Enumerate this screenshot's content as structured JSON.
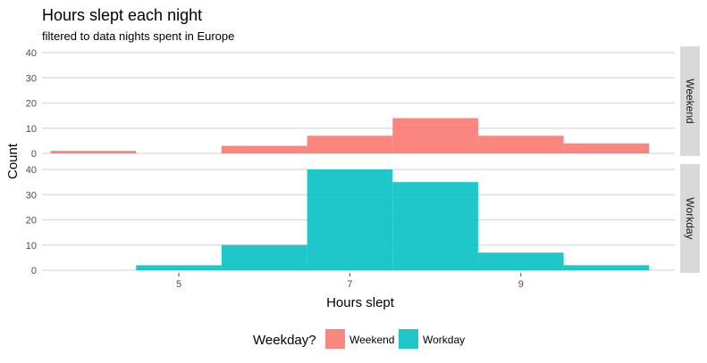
{
  "chart_data": {
    "type": "bar",
    "title": "Hours slept each night",
    "subtitle": "filtered to data nights spent in Europe",
    "xlabel": "Hours slept",
    "ylabel": "Count",
    "x_ticks": [
      5,
      7,
      9
    ],
    "y_ticks": [
      0,
      10,
      20,
      30,
      40
    ],
    "xlim": [
      3.4,
      10.8
    ],
    "ylim": [
      0,
      40
    ],
    "bin_width": 1,
    "grid": true,
    "legend": {
      "title": "Weekday?",
      "placement": "bottom",
      "entries": [
        {
          "label": "Weekend",
          "color": "#F8766D"
        },
        {
          "label": "Workday",
          "color": "#00BFC4"
        }
      ]
    },
    "facets": [
      {
        "label": "Weekend",
        "color": "#F8766D",
        "bins": [
          {
            "x": 4,
            "count": 1
          },
          {
            "x": 5,
            "count": 0
          },
          {
            "x": 6,
            "count": 3
          },
          {
            "x": 7,
            "count": 7
          },
          {
            "x": 8,
            "count": 14
          },
          {
            "x": 9,
            "count": 7
          },
          {
            "x": 10,
            "count": 4
          }
        ]
      },
      {
        "label": "Workday",
        "color": "#00BFC4",
        "bins": [
          {
            "x": 4,
            "count": 0
          },
          {
            "x": 5,
            "count": 2
          },
          {
            "x": 6,
            "count": 10
          },
          {
            "x": 7,
            "count": 40
          },
          {
            "x": 8,
            "count": 35
          },
          {
            "x": 9,
            "count": 7
          },
          {
            "x": 10,
            "count": 2
          }
        ]
      }
    ]
  }
}
